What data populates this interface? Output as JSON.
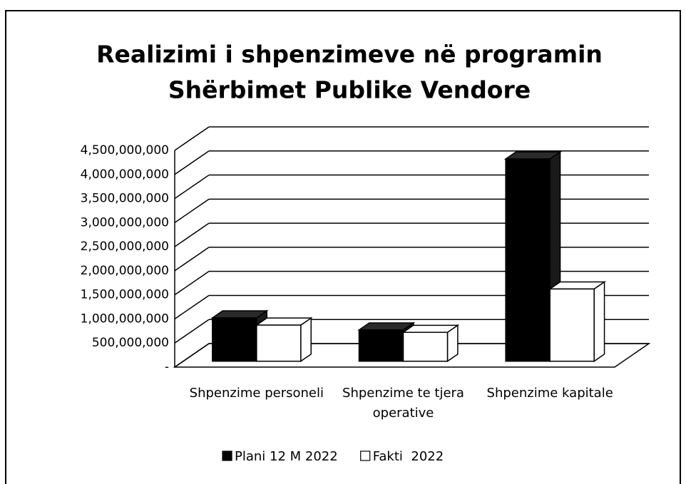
{
  "chart_data": {
    "type": "bar3d",
    "title": [
      "Realizimi i shpenzimeve në programin",
      "Shërbimet Publike Vendore"
    ],
    "categories": [
      "Shpenzime personeli",
      "Shpenzime te tjera operative",
      "Shpenzime kapitale"
    ],
    "series": [
      {
        "name": "Plani 12 M 2022",
        "color": "#000000",
        "values": [
          900000000,
          650000000,
          4200000000
        ]
      },
      {
        "name": "Fakti  2022",
        "color": "#ffffff",
        "values": [
          750000000,
          600000000,
          1500000000
        ]
      }
    ],
    "ylim": [
      0,
      4500000000
    ],
    "yticks": [
      {
        "value": 0,
        "label": "-"
      },
      {
        "value": 500000000,
        "label": "500,000,000"
      },
      {
        "value": 1000000000,
        "label": "1,000,000,000"
      },
      {
        "value": 1500000000,
        "label": "1,500,000,000"
      },
      {
        "value": 2000000000,
        "label": "2,000,000,000"
      },
      {
        "value": 2500000000,
        "label": "2,500,000,000"
      },
      {
        "value": 3000000000,
        "label": "3,000,000,000"
      },
      {
        "value": 3500000000,
        "label": "3,500,000,000"
      },
      {
        "value": 4000000000,
        "label": "4,000,000,000"
      },
      {
        "value": 4500000000,
        "label": "4,500,000,000"
      }
    ],
    "grid": true,
    "legend": "bottom"
  }
}
